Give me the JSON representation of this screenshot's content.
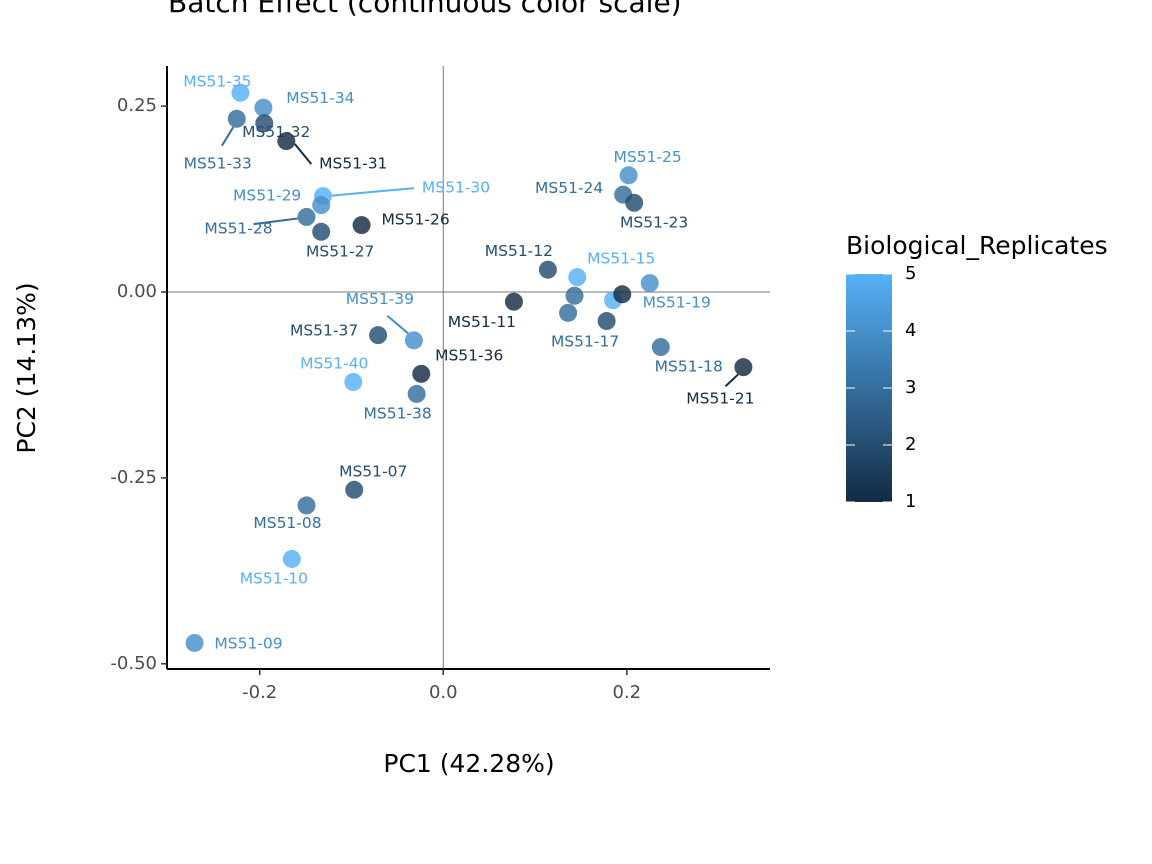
{
  "chart_data": {
    "type": "scatter",
    "title": "Batch Effect (continuous color scale)",
    "x_label": "PC1 (42.28%)",
    "y_label": "PC2 (14.13%)",
    "labels": [
      "MS51-35",
      "MS51-34",
      "MS51-33",
      "MS51-32",
      "MS51-31",
      "MS51-30",
      "MS51-29",
      "MS51-28",
      "MS51-27",
      "MS51-26",
      "MS51-25",
      "MS51-24",
      "MS51-23",
      "MS51-12",
      "MS51-15",
      "MS51-19",
      "MS51-11",
      null,
      "MS51-17",
      null,
      null,
      null,
      "MS51-18",
      "MS51-21",
      "MS51-37",
      "MS51-39",
      "MS51-36",
      "MS51-40",
      "MS51-38",
      "MS51-07",
      "MS51-08",
      "MS51-10",
      "MS51-09"
    ],
    "x": [
      -0.221,
      -0.196,
      -0.225,
      -0.195,
      -0.171,
      -0.131,
      -0.133,
      -0.149,
      -0.133,
      -0.089,
      0.202,
      0.196,
      0.208,
      0.114,
      0.146,
      0.225,
      0.077,
      0.143,
      0.136,
      0.178,
      0.185,
      0.195,
      0.237,
      0.327,
      -0.071,
      -0.032,
      -0.024,
      -0.098,
      -0.029,
      -0.097,
      -0.149,
      -0.165,
      -0.271
    ],
    "y": [
      0.268,
      0.248,
      0.233,
      0.227,
      0.203,
      0.129,
      0.117,
      0.101,
      0.081,
      0.09,
      0.157,
      0.131,
      0.12,
      0.03,
      0.02,
      0.012,
      -0.013,
      -0.005,
      -0.028,
      -0.039,
      -0.011,
      -0.003,
      -0.074,
      -0.101,
      -0.058,
      -0.065,
      -0.11,
      -0.121,
      -0.137,
      -0.266,
      -0.287,
      -0.359,
      -0.472
    ],
    "color_values": [
      5,
      4,
      3,
      2,
      1,
      5,
      4,
      3,
      2,
      1,
      4,
      3,
      2,
      2,
      5,
      4,
      1,
      3,
      3,
      2,
      5,
      1,
      3,
      1,
      2,
      4,
      1,
      5,
      3,
      2,
      3,
      5,
      4
    ],
    "color_scale": {
      "title": "Biological_Replicates",
      "low": "#132B43",
      "high": "#56B1F7",
      "limits": [
        1,
        5
      ],
      "ticks": [
        1,
        2,
        3,
        4,
        5
      ]
    },
    "xlim": [
      -0.301,
      0.356
    ],
    "ylim": [
      -0.507,
      0.304
    ],
    "xticks": [
      {
        "value": -0.2,
        "label": "-0.2"
      },
      {
        "value": 0,
        "label": "0.0"
      },
      {
        "value": 0.2,
        "label": "0.2"
      }
    ],
    "yticks": [
      {
        "value": 0.25,
        "label": "0.25"
      },
      {
        "value": 0,
        "label": "0.00"
      },
      {
        "value": -0.25,
        "label": "-0.25"
      },
      {
        "value": -0.5,
        "label": "-0.50"
      }
    ],
    "hline": 0,
    "vline": 0,
    "grid": false
  }
}
